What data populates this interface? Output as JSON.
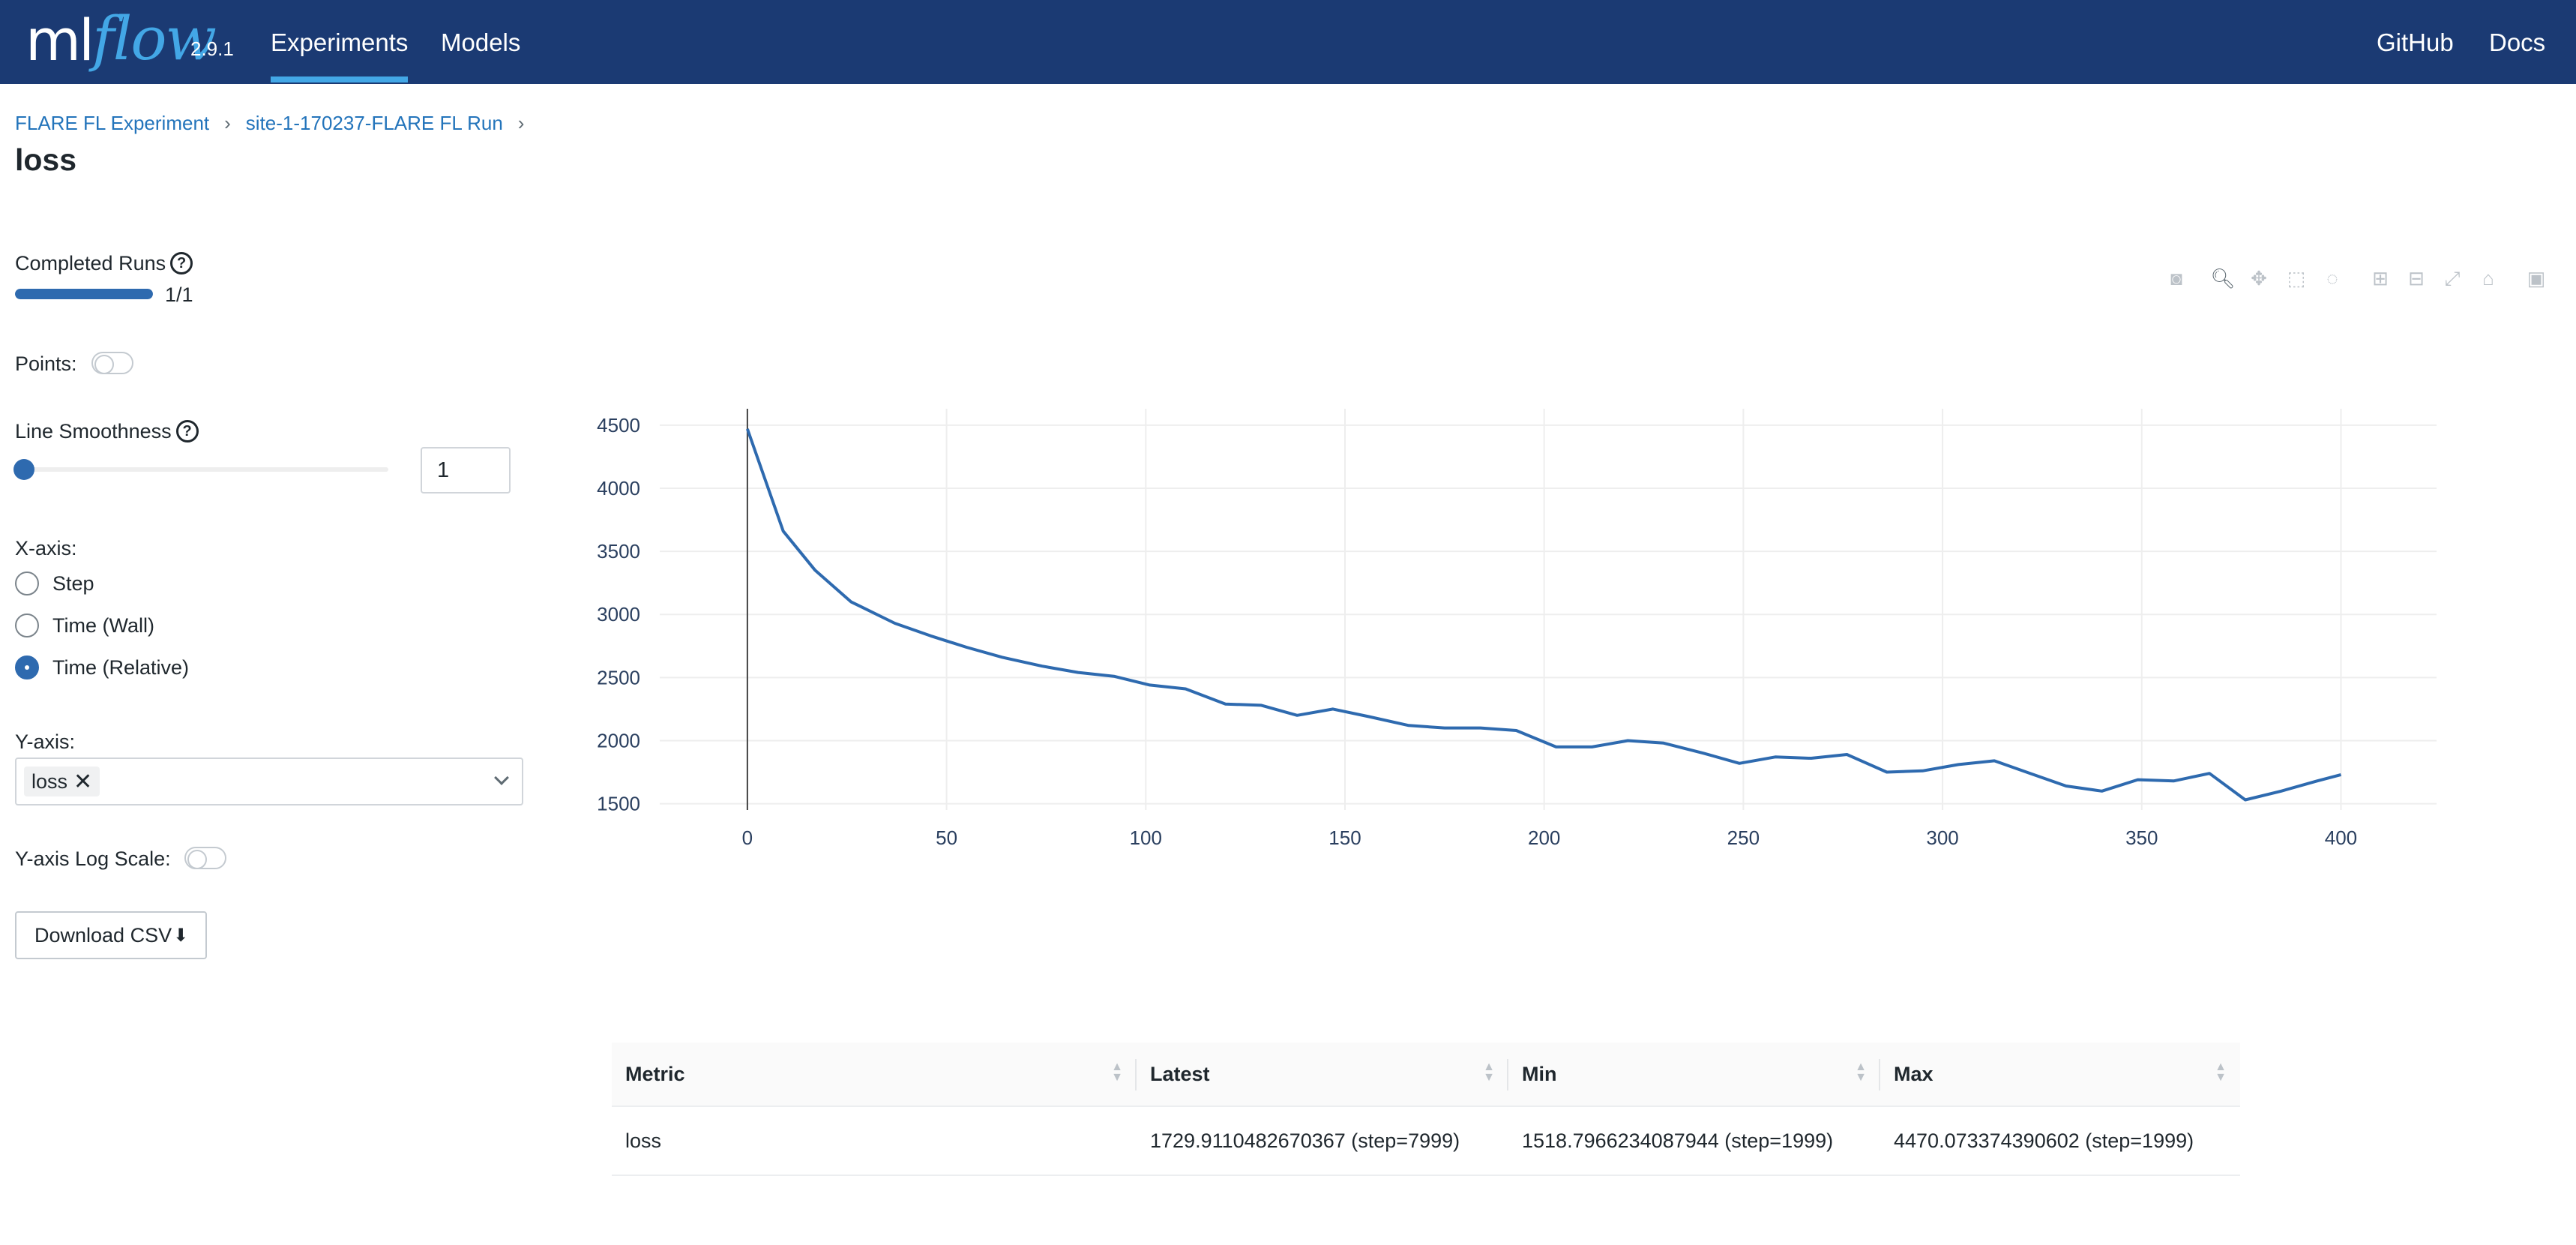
{
  "header": {
    "logo_ml": "ml",
    "logo_flow": "flow",
    "version": "2.9.1",
    "tabs": [
      {
        "label": "Experiments",
        "active": true
      },
      {
        "label": "Models",
        "active": false
      }
    ],
    "links": {
      "github": "GitHub",
      "docs": "Docs"
    },
    "colors": {
      "background": "#1b3a73",
      "accent": "#43a7e6"
    }
  },
  "breadcrumb": {
    "items": [
      "FLARE FL Experiment",
      "site-1-170237-FLARE FL Run"
    ],
    "separator": "›"
  },
  "page_title": "loss",
  "controls": {
    "completed_runs_label": "Completed Runs",
    "completed_runs_text": "1/1",
    "completed_runs_fraction": 1.0,
    "points_label": "Points:",
    "points_enabled": false,
    "smoothness_label": "Line Smoothness",
    "smoothness_value": "1",
    "xaxis_label": "X-axis:",
    "xaxis_options": [
      {
        "label": "Step",
        "checked": false
      },
      {
        "label": "Time (Wall)",
        "checked": false
      },
      {
        "label": "Time (Relative)",
        "checked": true
      }
    ],
    "yaxis_label": "Y-axis:",
    "yaxis_selected": "loss",
    "log_scale_label": "Y-axis Log Scale:",
    "log_scale_enabled": false,
    "download_label": "Download CSV",
    "accent_color": "#2e6aaf"
  },
  "modebar": {
    "icons": [
      "camera-icon",
      "zoom-icon",
      "pan-icon",
      "box-select-icon",
      "lasso-icon",
      "zoom-in-icon",
      "zoom-out-icon",
      "autoscale-icon",
      "home-icon",
      "save-icon"
    ]
  },
  "chart_data": {
    "type": "line",
    "title": "",
    "xlabel": "",
    "ylabel": "",
    "xlim": [
      -22,
      424
    ],
    "ylim": [
      1450,
      4630
    ],
    "xticks": [
      0,
      50,
      100,
      150,
      200,
      250,
      300,
      350,
      400
    ],
    "yticks": [
      1500,
      2000,
      2500,
      3000,
      3500,
      4000,
      4500
    ],
    "grid": true,
    "line_color": "#2e6aaf",
    "series": [
      {
        "x": [
          0,
          9,
          17,
          26,
          37,
          46,
          55,
          64,
          74,
          83,
          92,
          101,
          110,
          120,
          129,
          138,
          147,
          156,
          166,
          175,
          184,
          193,
          203,
          212,
          221,
          230,
          240,
          249,
          258,
          267,
          276,
          286,
          295,
          304,
          313,
          322,
          331,
          340,
          349,
          358,
          367,
          376,
          385,
          394,
          400
        ],
        "y": [
          4470,
          3660,
          3350,
          3100,
          2930,
          2830,
          2740,
          2660,
          2590,
          2540,
          2510,
          2440,
          2410,
          2290,
          2280,
          2200,
          2250,
          2190,
          2120,
          2100,
          2100,
          2080,
          1950,
          1950,
          2000,
          1980,
          1900,
          1820,
          1870,
          1860,
          1890,
          1750,
          1760,
          1810,
          1840,
          1740,
          1640,
          1600,
          1690,
          1680,
          1740,
          1530,
          1600,
          1680,
          1730
        ]
      }
    ]
  },
  "table": {
    "columns": [
      "Metric",
      "Latest",
      "Min",
      "Max"
    ],
    "rows": [
      [
        "loss",
        "1729.9110482670367 (step=7999)",
        "1518.7966234087944 (step=1999)",
        "4470.073374390602 (step=1999)"
      ]
    ]
  }
}
